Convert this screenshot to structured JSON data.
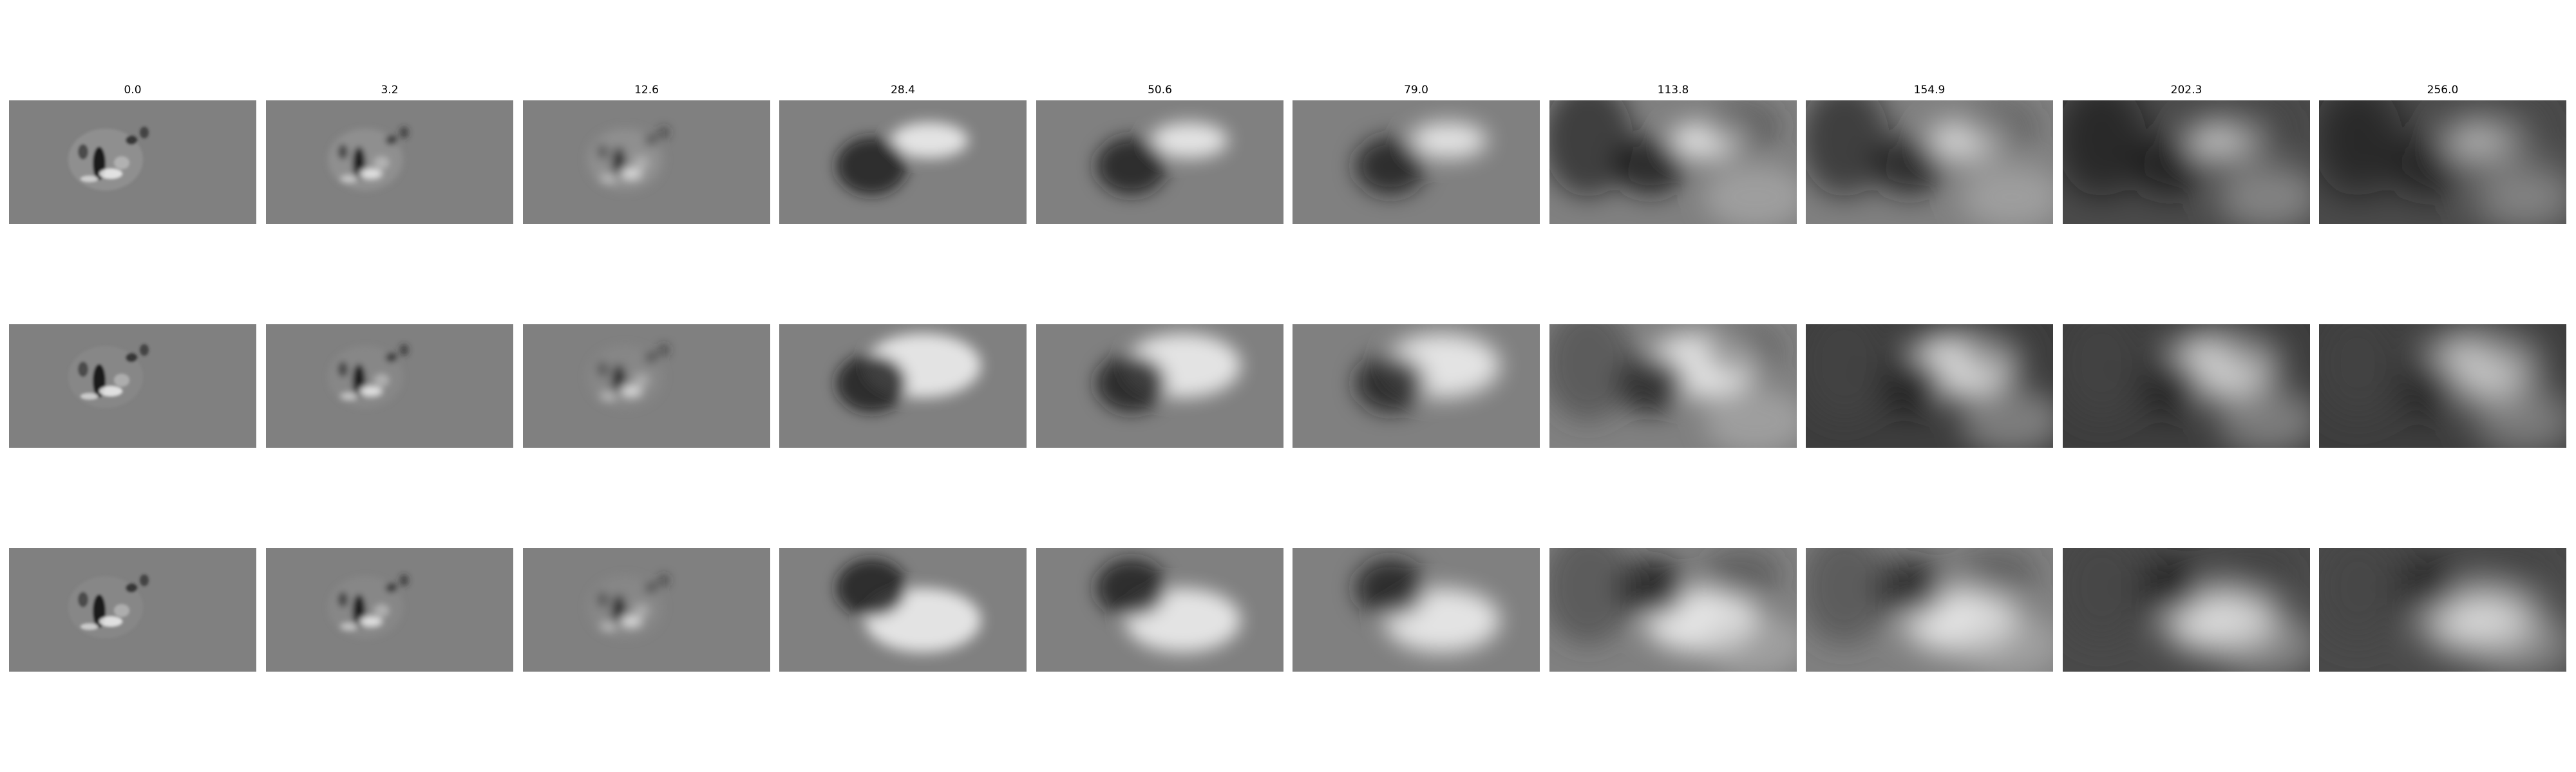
{
  "figure": {
    "column_titles": [
      "0.0",
      "3.2",
      "12.6",
      "28.4",
      "50.6",
      "79.0",
      "113.8",
      "154.9",
      "202.3",
      "256.0"
    ],
    "row_count": 3,
    "colormap": "grayscale",
    "background_gray": "#808080",
    "page_background": "#ffffff"
  }
}
